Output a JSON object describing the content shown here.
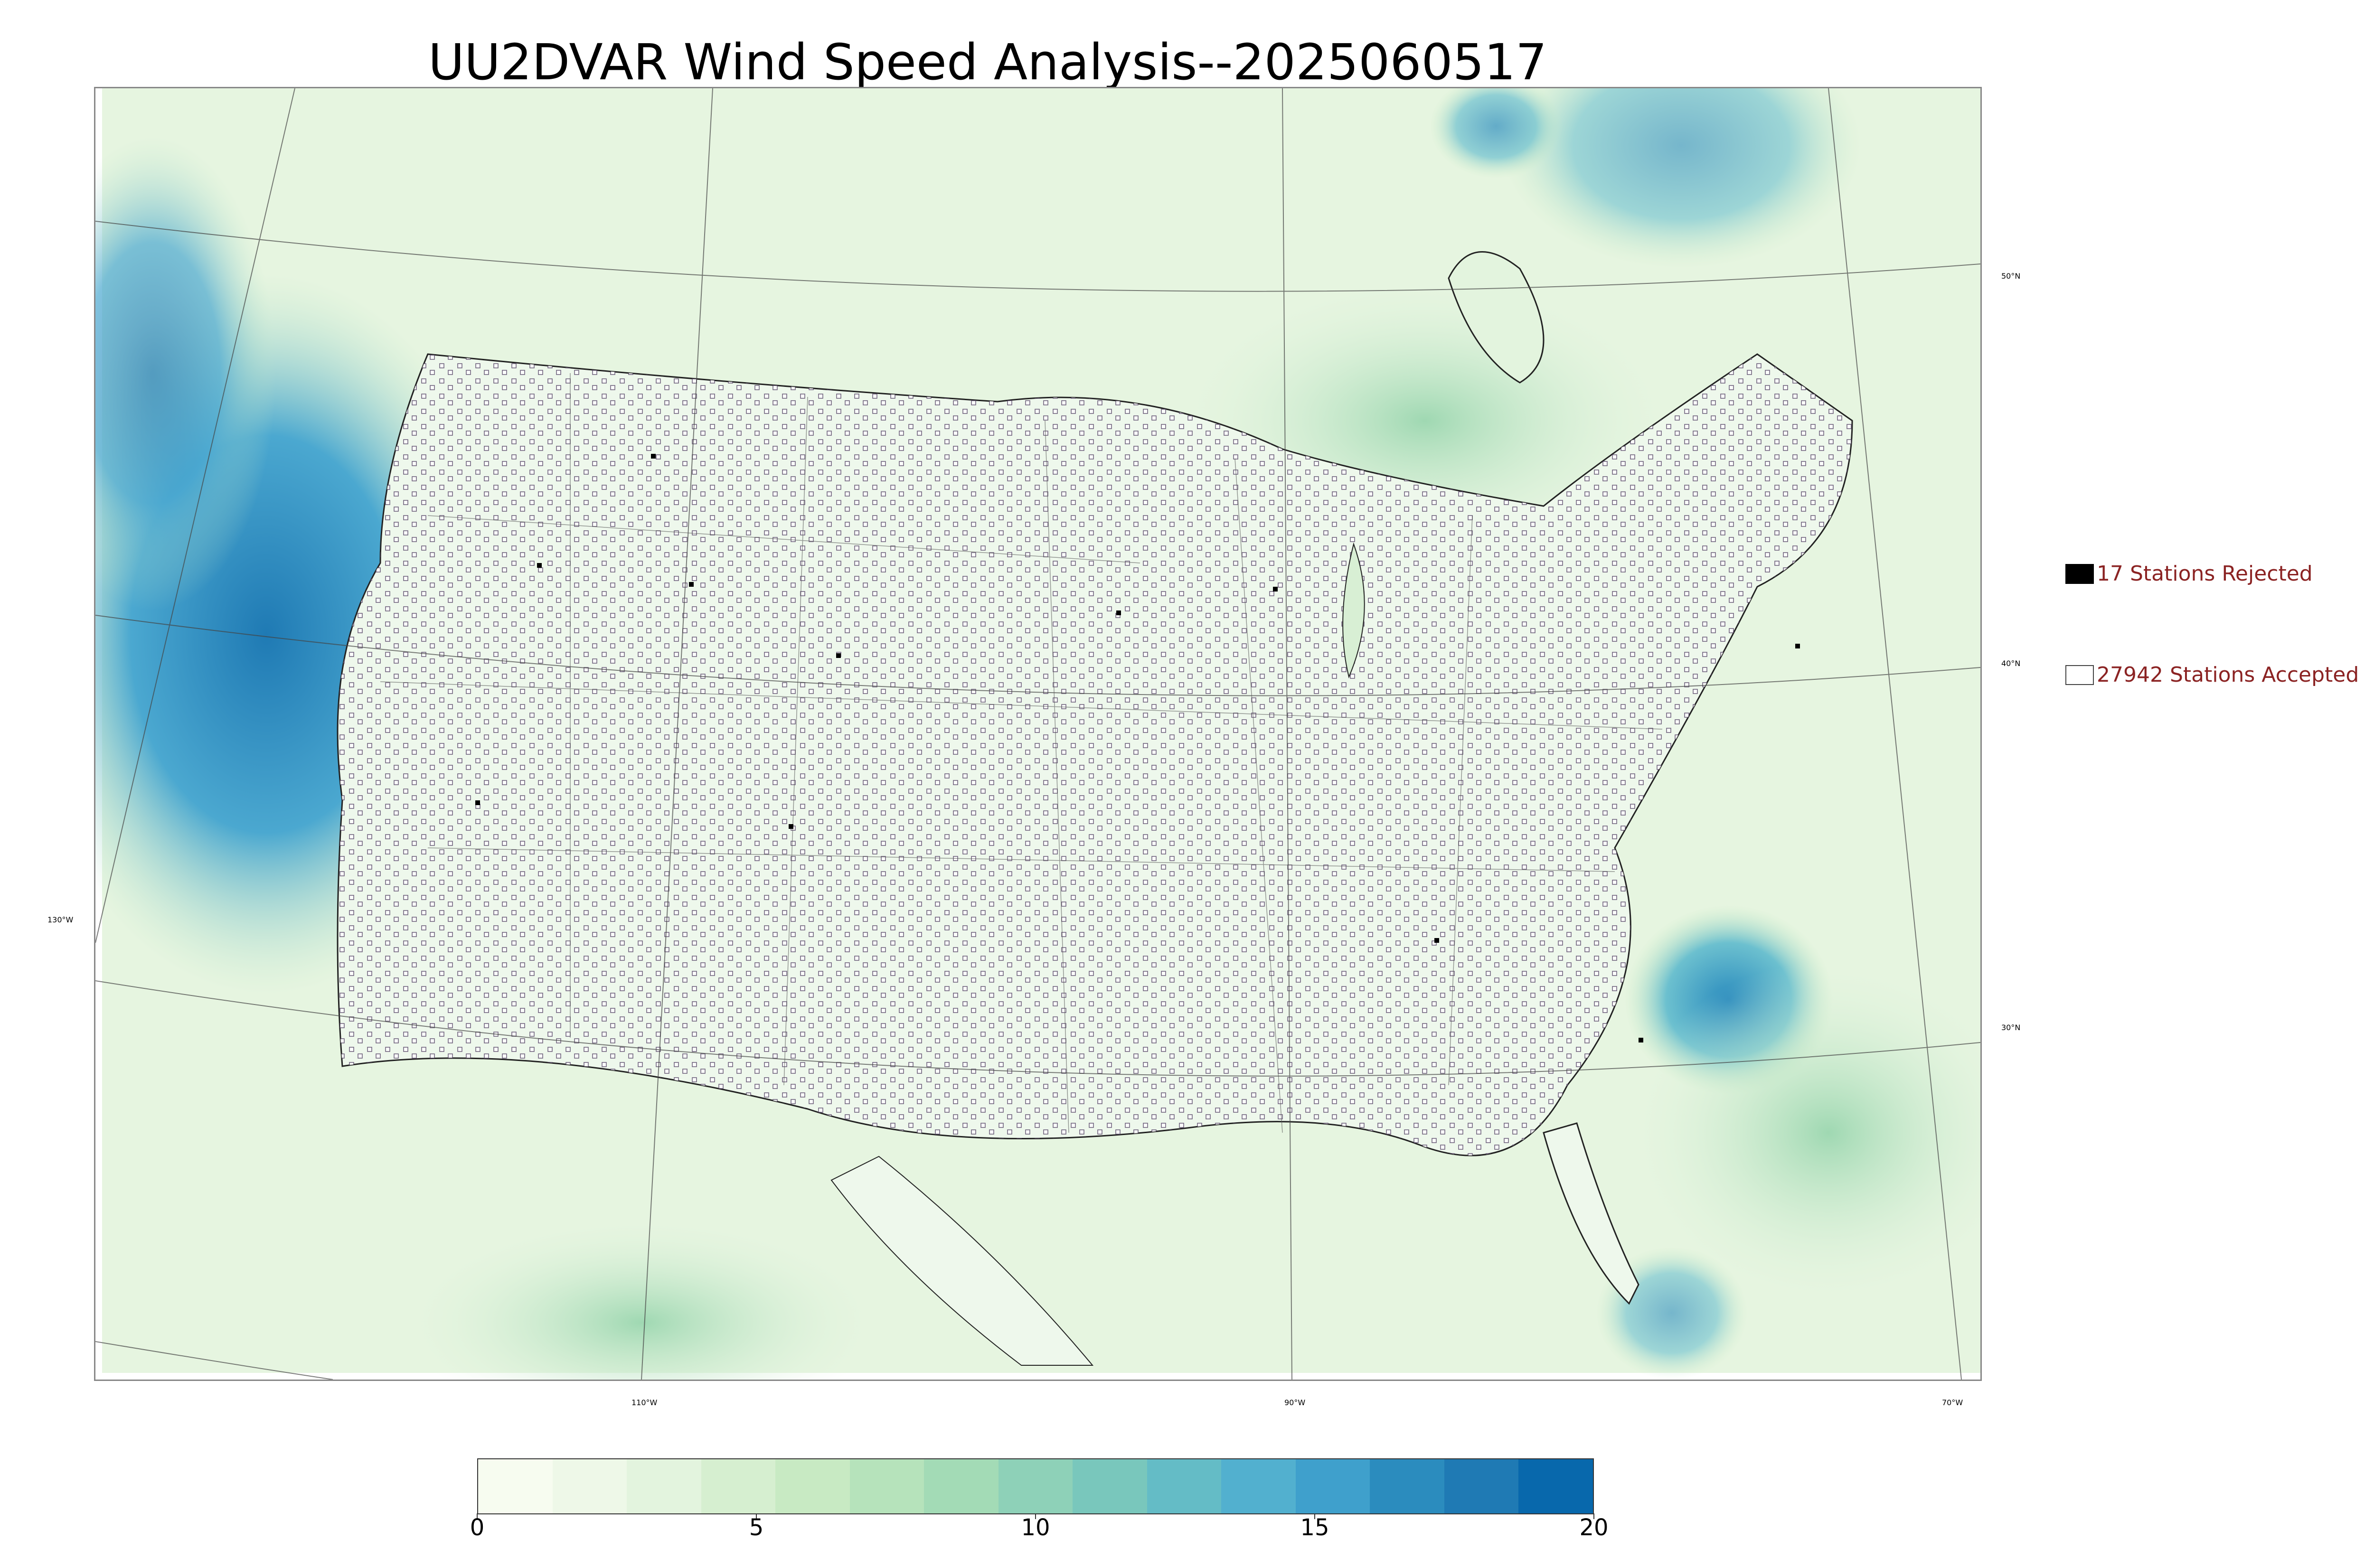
{
  "title": "UU2DVAR Wind Speed Analysis--2025060517",
  "map": {
    "lat_labels": [
      "50°N",
      "40°N",
      "30°N"
    ],
    "lon_labels_left": [
      "130°W"
    ],
    "lon_labels_bottom": [
      "110°W",
      "90°W",
      "70°W"
    ]
  },
  "legend": {
    "rejected_label": "17 Stations Rejected",
    "accepted_label": "27942 Stations Accepted"
  },
  "colorbar": {
    "ticks": [
      "0",
      "5",
      "10",
      "15",
      "20"
    ],
    "colors": [
      "#f7fcf0",
      "#eef8e8",
      "#e3f4de",
      "#d6efd0",
      "#c8eac3",
      "#b6e3bb",
      "#a3dbb6",
      "#8ed1b8",
      "#79c7bc",
      "#64bcc6",
      "#52b0cf",
      "#3fa0cc",
      "#2b8cbe",
      "#1f7ab4",
      "#0868ac"
    ]
  }
}
